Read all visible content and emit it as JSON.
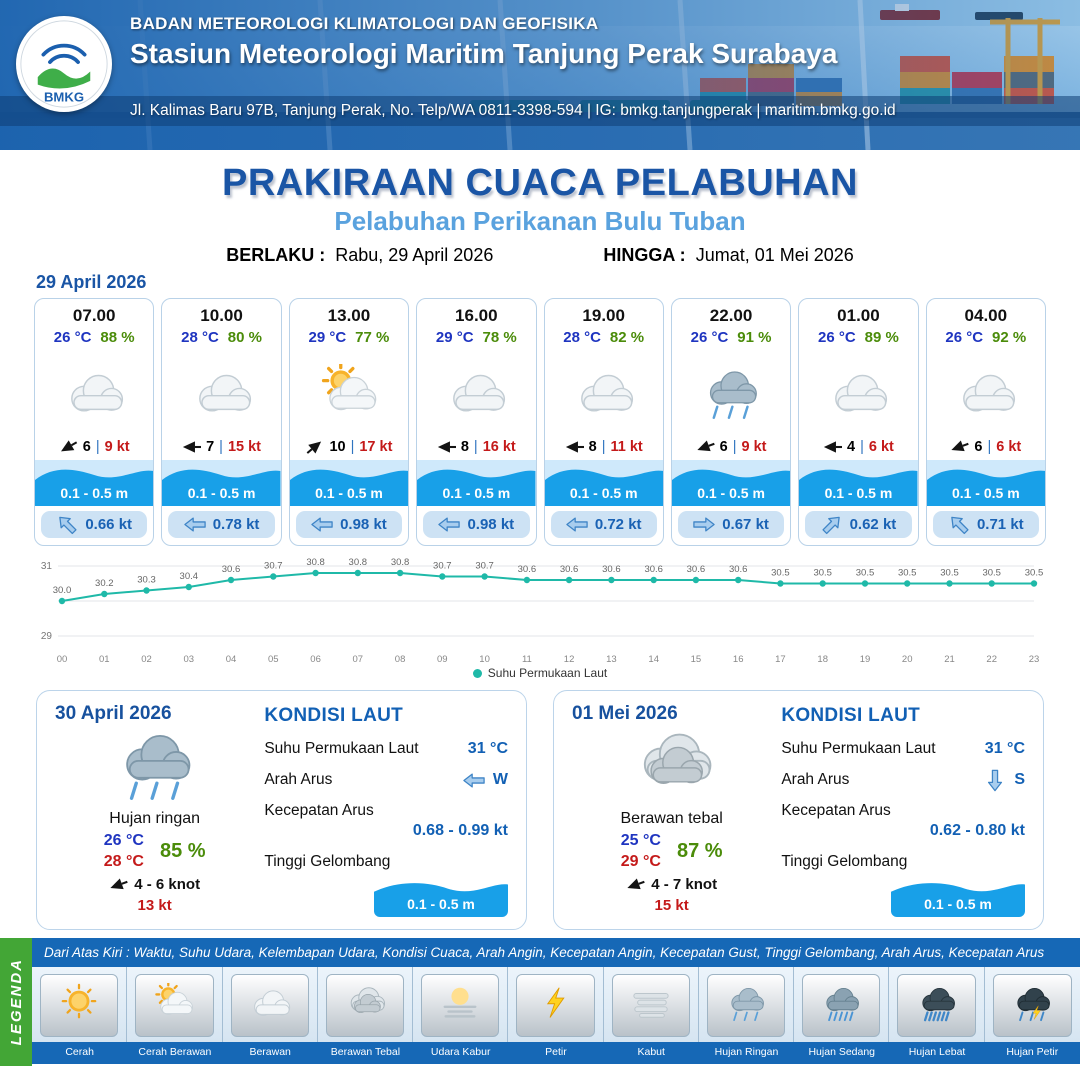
{
  "header": {
    "org": "BADAN METEOROLOGI KLIMATOLOGI DAN GEOFISIKA",
    "station": "Stasiun Meteorologi Maritim Tanjung Perak Surabaya",
    "address": "Jl. Kalimas Baru 97B, Tanjung Perak, No. Telp/WA 0811-3398-594 | IG: bmkg.tanjungperak | maritim.bmkg.go.id",
    "logo_text": "BMKG"
  },
  "title": {
    "main": "PRAKIRAAN CUACA PELABUHAN",
    "sub": "Pelabuhan Perikanan Bulu Tuban",
    "valid_label": "BERLAKU :",
    "valid_value": "Rabu, 29 April 2026",
    "until_label": "HINGGA :",
    "until_value": "Jumat, 01 Mei 2026"
  },
  "forecast": {
    "date_label": "29 April 2026",
    "separator": "|",
    "cards": [
      {
        "time": "07.00",
        "temp": "26 °C",
        "rh": "88 %",
        "icon": "berawan",
        "wind": "6",
        "gust": "9 kt",
        "wind_deg": -30,
        "wave": "0.1 - 0.5 m",
        "current": "0.66 kt",
        "current_deg": 45
      },
      {
        "time": "10.00",
        "temp": "28 °C",
        "rh": "80 %",
        "icon": "berawan",
        "wind": "7",
        "gust": "15 kt",
        "wind_deg": 0,
        "wave": "0.1 - 0.5 m",
        "current": "0.78 kt",
        "current_deg": 0
      },
      {
        "time": "13.00",
        "temp": "29 °C",
        "rh": "77 %",
        "icon": "cerah-berawan",
        "wind": "10",
        "gust": "17 kt",
        "wind_deg": 140,
        "wave": "0.1 - 0.5 m",
        "current": "0.98 kt",
        "current_deg": 0
      },
      {
        "time": "16.00",
        "temp": "29 °C",
        "rh": "78 %",
        "icon": "berawan",
        "wind": "8",
        "gust": "16 kt",
        "wind_deg": 0,
        "wave": "0.1 - 0.5 m",
        "current": "0.98 kt",
        "current_deg": 0
      },
      {
        "time": "19.00",
        "temp": "28 °C",
        "rh": "82 %",
        "icon": "berawan",
        "wind": "8",
        "gust": "11 kt",
        "wind_deg": 0,
        "wave": "0.1 - 0.5 m",
        "current": "0.72 kt",
        "current_deg": 0
      },
      {
        "time": "22.00",
        "temp": "26 °C",
        "rh": "91 %",
        "icon": "hujan-ringan",
        "wind": "6",
        "gust": "9 kt",
        "wind_deg": -20,
        "wave": "0.1 - 0.5 m",
        "current": "0.67 kt",
        "current_deg": 180
      },
      {
        "time": "01.00",
        "temp": "26 °C",
        "rh": "89 %",
        "icon": "berawan",
        "wind": "4",
        "gust": "6 kt",
        "wind_deg": 0,
        "wave": "0.1 - 0.5 m",
        "current": "0.62 kt",
        "current_deg": 135
      },
      {
        "time": "04.00",
        "temp": "26 °C",
        "rh": "92 %",
        "icon": "berawan",
        "wind": "6",
        "gust": "6 kt",
        "wind_deg": -20,
        "wave": "0.1 - 0.5 m",
        "current": "0.71 kt",
        "current_deg": 45
      }
    ]
  },
  "chart_data": {
    "type": "line",
    "x": [
      "00",
      "01",
      "02",
      "03",
      "04",
      "05",
      "06",
      "07",
      "08",
      "09",
      "10",
      "11",
      "12",
      "13",
      "14",
      "15",
      "16",
      "17",
      "18",
      "19",
      "20",
      "21",
      "22",
      "23"
    ],
    "series": [
      {
        "name": "Suhu Permukaan Laut",
        "values": [
          30.0,
          30.2,
          30.3,
          30.4,
          30.6,
          30.7,
          30.8,
          30.8,
          30.8,
          30.7,
          30.7,
          30.6,
          30.6,
          30.6,
          30.6,
          30.6,
          30.6,
          30.5,
          30.5,
          30.5,
          30.5,
          30.5,
          30.5,
          30.5
        ]
      }
    ],
    "ylim": [
      29,
      31
    ],
    "line_color": "#1fb9a8",
    "grid": true,
    "legend_position": "bottom"
  },
  "daily": [
    {
      "date": "30 April 2026",
      "icon": "hujan-ringan",
      "condition": "Hujan ringan",
      "temp_min": "26 °C",
      "temp_max": "28 °C",
      "rh": "85 %",
      "wind": "4  - 6 knot",
      "gust": "13 kt",
      "wind_deg": -20,
      "sea": {
        "title": "KONDISI LAUT",
        "sst_label": "Suhu Permukaan Laut",
        "sst": "31 °C",
        "dir_label": "Arah Arus",
        "dir": "W",
        "current_deg": 0,
        "speed_label": "Kecepatan Arus",
        "speed": "0.68  - 0.99 kt",
        "wave_label": "Tinggi Gelombang",
        "wave": "0.1 - 0.5 m"
      }
    },
    {
      "date": "01 Mei 2026",
      "icon": "berawan-tebal",
      "condition": "Berawan tebal",
      "temp_min": "25 °C",
      "temp_max": "29 °C",
      "rh": "87 %",
      "wind": "4  - 7 knot",
      "gust": "15 kt",
      "wind_deg": -20,
      "sea": {
        "title": "KONDISI LAUT",
        "sst_label": "Suhu Permukaan Laut",
        "sst": "31 °C",
        "dir_label": "Arah Arus",
        "dir": "S",
        "current_deg": 270,
        "speed_label": "Kecepatan Arus",
        "speed": "0.62  - 0.80 kt",
        "wave_label": "Tinggi Gelombang",
        "wave": "0.1 - 0.5 m"
      }
    }
  ],
  "legend": {
    "strip": "LEGENDA",
    "note": "Dari Atas Kiri : Waktu, Suhu Udara, Kelembapan Udara, Kondisi Cuaca, Arah Angin, Kecepatan Angin, Kecepatan Gust, Tinggi Gelombang, Arah Arus, Kecepatan Arus",
    "items": [
      {
        "icon": "cerah",
        "label": "Cerah"
      },
      {
        "icon": "cerah-berawan",
        "label": "Cerah Berawan"
      },
      {
        "icon": "berawan",
        "label": "Berawan"
      },
      {
        "icon": "berawan-tebal",
        "label": "Berawan Tebal"
      },
      {
        "icon": "udara-kabur",
        "label": "Udara Kabur"
      },
      {
        "icon": "petir",
        "label": "Petir"
      },
      {
        "icon": "kabut",
        "label": "Kabut"
      },
      {
        "icon": "hujan-ringan",
        "label": "Hujan Ringan"
      },
      {
        "icon": "hujan-sedang",
        "label": "Hujan Sedang"
      },
      {
        "icon": "hujan-lebat",
        "label": "Hujan Lebat"
      },
      {
        "icon": "hujan-petir",
        "label": "Hujan Petir"
      }
    ]
  }
}
